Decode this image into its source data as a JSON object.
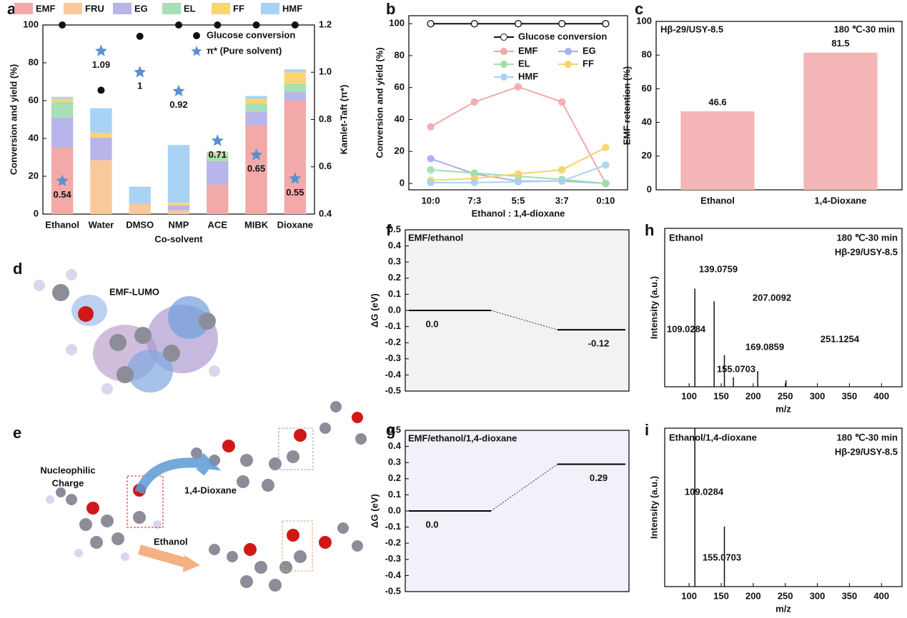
{
  "chart_data": [
    {
      "panel": "a",
      "type": "stacked_bar",
      "categories": [
        "Ethanol",
        "Water",
        "DMSO",
        "NMP",
        "ACE",
        "MIBK",
        "Dioxane"
      ],
      "series": [
        {
          "name": "EMF",
          "color": "#f4a9a9",
          "values": [
            35.5,
            0,
            0,
            0,
            15.5,
            47,
            60
          ]
        },
        {
          "name": "FRU",
          "color": "#f9c99c",
          "values": [
            0,
            28.5,
            5.5,
            2,
            0,
            0,
            0
          ]
        },
        {
          "name": "EG",
          "color": "#b7b5ea",
          "values": [
            15.5,
            12,
            0,
            2.5,
            12.5,
            7,
            4.5
          ]
        },
        {
          "name": "EL",
          "color": "#a9dfb6",
          "values": [
            8.5,
            0,
            0,
            0,
            3.5,
            4.5,
            4.5
          ]
        },
        {
          "name": "FF",
          "color": "#fbd56f",
          "values": [
            1.5,
            2.5,
            0,
            1.5,
            1,
            2.5,
            6
          ]
        },
        {
          "name": "HMF",
          "color": "#a9d3f5",
          "values": [
            1,
            13,
            9,
            30.5,
            0.5,
            1.5,
            1.5
          ]
        },
        {
          "name": "Glucose conversion",
          "type": "scatter",
          "marker": "dot",
          "color": "#111111",
          "values": [
            100,
            65.5,
            94,
            100,
            100,
            100,
            100
          ]
        },
        {
          "name": "π* (Pure solvent)",
          "type": "scatter",
          "marker": "star",
          "color": "#5b8fd0",
          "axis": "y2",
          "values": [
            0.54,
            1.09,
            1,
            0.92,
            0.71,
            0.65,
            0.55
          ]
        }
      ],
      "ylim": [
        0,
        100
      ],
      "yticks": [
        0,
        20,
        40,
        60,
        80,
        100
      ],
      "y2lim": [
        0.4,
        1.2
      ],
      "y2ticks": [
        0.4,
        0.6,
        0.8,
        {
          "value": 1,
          "label": "1.0"
        },
        1.2
      ],
      "xlabel": "Co-solvent",
      "ylabel": "Conversion and yield (%)",
      "y2label": "Kamlet-Taft (π*)"
    },
    {
      "panel": "b",
      "type": "line",
      "categories": [
        "10:0",
        "7:3",
        "5:5",
        "3:7",
        "0:10"
      ],
      "series": [
        {
          "name": "Glucose conversion",
          "color": "#111111",
          "values": [
            100,
            100,
            100,
            100,
            100
          ]
        },
        {
          "name": "EMF",
          "color": "#f4a9a9",
          "values": [
            35.5,
            51,
            60.5,
            51,
            0
          ]
        },
        {
          "name": "EG",
          "color": "#a9aef0",
          "values": [
            15.5,
            6,
            1.5,
            1.5,
            0
          ]
        },
        {
          "name": "EL",
          "color": "#9ee0a8",
          "values": [
            8.5,
            6.5,
            4.5,
            2.5,
            0
          ]
        },
        {
          "name": "FF",
          "color": "#f8d26a",
          "values": [
            2,
            3,
            6,
            8.5,
            22.5
          ]
        },
        {
          "name": "HMF",
          "color": "#a7d3f3",
          "values": [
            0.5,
            0.5,
            1,
            1.5,
            11.5
          ]
        }
      ],
      "ylim": [
        -4,
        105
      ],
      "yticks": [
        0,
        20,
        40,
        60,
        80,
        100
      ],
      "xlabel": "Ethanol : 1,4-dioxane",
      "ylabel": "Conversion and yield (%)"
    },
    {
      "panel": "c",
      "type": "bar",
      "categories": [
        "Ethanol",
        "1,4-Dioxane"
      ],
      "values": [
        46.6,
        81.5
      ],
      "color": "#f4b6b6",
      "ylim": [
        0,
        100
      ],
      "yticks": [
        0,
        20,
        40,
        60,
        80,
        100
      ],
      "ylabel": "EMF retention (%)",
      "annotations": [
        "Hβ-29/USY-8.5",
        "180 ℃-30 min"
      ]
    },
    {
      "panel": "f",
      "type": "energy",
      "title": "EMF/ethanol",
      "values": [
        0,
        -0.12
      ],
      "value_labels": [
        "0.0",
        "-0.12"
      ],
      "ylim": [
        -0.5,
        0.5
      ],
      "yticks": [
        0.5,
        0.4,
        0.3,
        0.2,
        0.1,
        {
          "value": 0,
          "label": "0.0"
        },
        -0.1,
        -0.2,
        -0.3,
        -0.4,
        -0.5
      ],
      "ylabel": "ΔG (eV)"
    },
    {
      "panel": "g",
      "type": "energy",
      "title": "EMF/ethanol/1,4-dioxane",
      "values": [
        0,
        0.29
      ],
      "value_labels": [
        "0.0",
        "0.29"
      ],
      "ylim": [
        -0.5,
        0.5
      ],
      "yticks": [
        0.5,
        0.4,
        0.3,
        0.2,
        0.1,
        {
          "value": 0,
          "label": "0.0"
        },
        -0.1,
        -0.2,
        -0.3,
        -0.4,
        -0.5
      ],
      "ylabel": "ΔG (eV)"
    },
    {
      "panel": "h",
      "type": "spectrum",
      "title": "Ethanol",
      "annotations": [
        "180 ℃-30 min",
        "Hβ-29/USY-8.5"
      ],
      "x": [
        109.0284,
        139.0759,
        155.0703,
        169.0859,
        207.0092,
        251.1254
      ],
      "values": [
        62,
        54,
        20,
        6,
        10,
        4
      ],
      "color": "#111111",
      "xlim": [
        62,
        432
      ],
      "xticks": [
        100,
        150,
        200,
        250,
        300,
        350,
        400
      ],
      "ylim": [
        0,
        100
      ],
      "xlabel": "m/z",
      "ylabel": "Intensity (a.u.)"
    },
    {
      "panel": "i",
      "type": "spectrum",
      "title": "Ethanol/1,4-dioxane",
      "annotations": [
        "180 ℃-30 min",
        "Hβ-29/USY-8.5"
      ],
      "x": [
        109.0284,
        155.0703
      ],
      "values": [
        100,
        38
      ],
      "color": "#111111",
      "xlim": [
        62,
        432
      ],
      "xticks": [
        100,
        150,
        200,
        250,
        300,
        350,
        400
      ],
      "ylim": [
        0,
        100
      ],
      "xlabel": "m/z",
      "ylabel": "Intensity (a.u.)"
    }
  ],
  "molecules": {
    "d": {
      "panel": "d",
      "label": "EMF-LUMO"
    },
    "e": {
      "panel": "e",
      "labels": [
        "Nucleophilic",
        "Charge",
        "1,4-Dioxane",
        "Ethanol"
      ]
    }
  }
}
